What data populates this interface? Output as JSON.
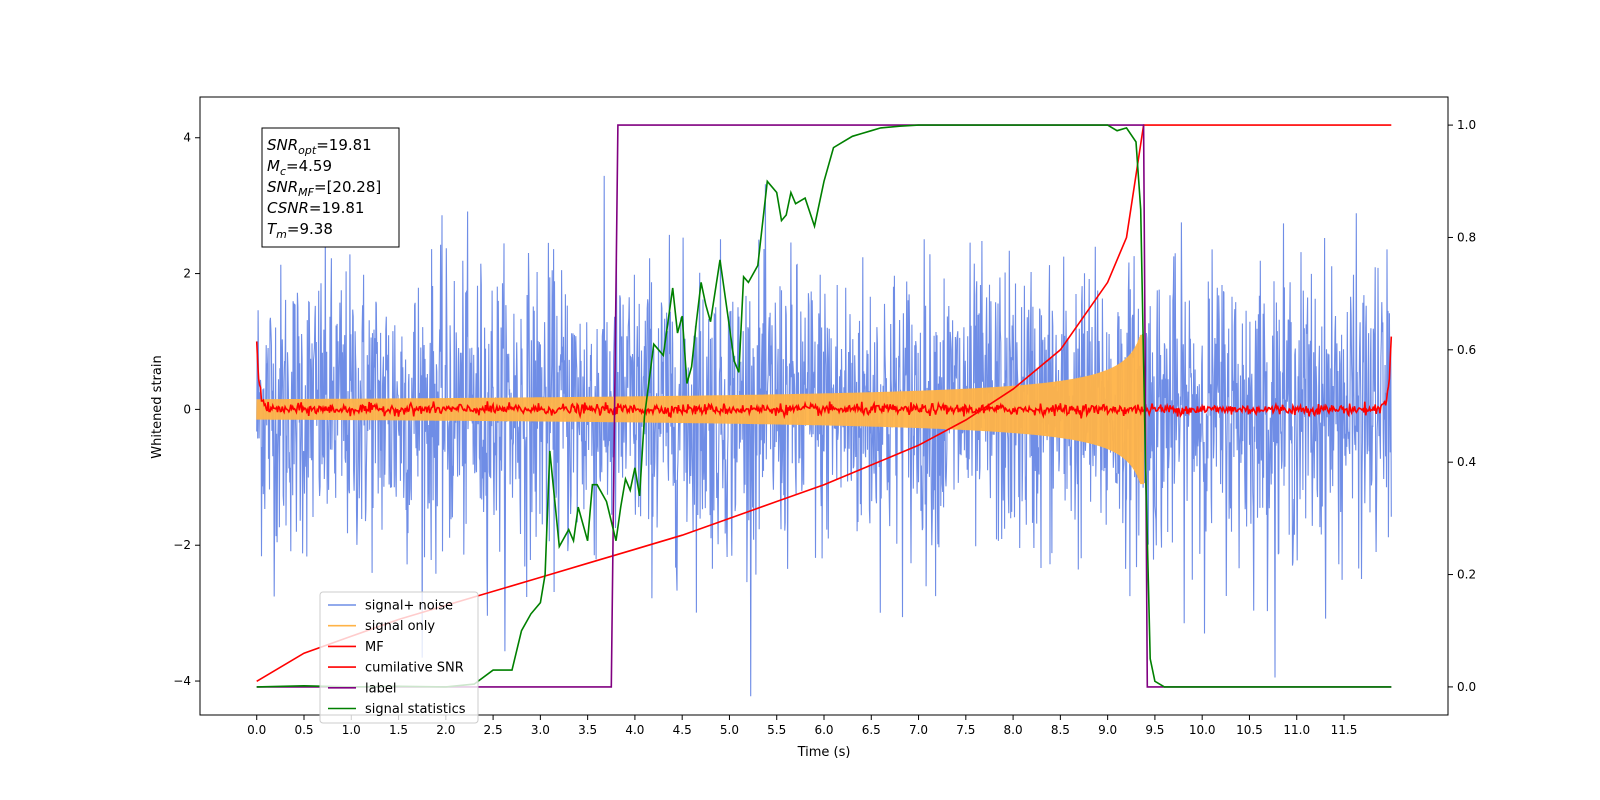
{
  "chart_data": {
    "type": "line",
    "title": "",
    "xlabel": "Time (s)",
    "ylabel": "Whitened strain",
    "y2label": "",
    "xlim": [
      -0.6,
      12.6
    ],
    "ylim": [
      -4.5,
      4.6
    ],
    "y2lim": [
      -0.05,
      1.05
    ],
    "x_ticks": [
      "0.0",
      "0.5",
      "1.0",
      "1.5",
      "2.0",
      "2.5",
      "3.0",
      "3.5",
      "4.0",
      "4.5",
      "5.0",
      "5.5",
      "6.0",
      "6.5",
      "7.0",
      "7.5",
      "8.0",
      "8.5",
      "9.0",
      "9.5",
      "10.0",
      "10.5",
      "11.0",
      "11.5"
    ],
    "y_ticks": [
      "−4",
      "−2",
      "0",
      "2",
      "4"
    ],
    "y2_ticks": [
      "0.0",
      "0.2",
      "0.4",
      "0.6",
      "0.8",
      "1.0"
    ],
    "grid": false,
    "legend_position": "lower-left",
    "annotation": {
      "lines": [
        {
          "base": "SNR",
          "sub": "opt",
          "value": "=19.81"
        },
        {
          "base": "M",
          "sub": "c",
          "value": "=4.59"
        },
        {
          "base": "SNR",
          "sub": "MF",
          "value": "=[20.28]"
        },
        {
          "base": "CSNR",
          "sub": "",
          "value": "=19.81"
        },
        {
          "base": "T",
          "sub": "m",
          "value": "=9.38"
        }
      ]
    },
    "series": [
      {
        "name": "signal+ noise",
        "color": "#6f8de6",
        "axis": "left",
        "noise_sigma": 1.0,
        "x_range": [
          0.0,
          12.0
        ]
      },
      {
        "name": "signal only",
        "color": "#ffb347",
        "axis": "left",
        "merge_time": 9.38,
        "amplitude_start": 0.15,
        "amplitude_peak": 1.1
      },
      {
        "name": "MF",
        "color": "#ff0000",
        "axis": "left",
        "noise_sigma": 0.04,
        "edge_value": 1.0
      },
      {
        "name": "cumilative SNR",
        "color": "#ff0000",
        "axis": "right",
        "x": [
          0.0,
          0.5,
          1.0,
          1.5,
          2.0,
          2.5,
          3.0,
          3.5,
          4.0,
          4.5,
          5.0,
          5.5,
          6.0,
          6.5,
          7.0,
          7.5,
          8.0,
          8.5,
          9.0,
          9.2,
          9.38,
          9.4,
          12.0
        ],
        "values": [
          0.01,
          0.06,
          0.09,
          0.12,
          0.145,
          0.17,
          0.195,
          0.22,
          0.245,
          0.27,
          0.3,
          0.33,
          0.36,
          0.395,
          0.43,
          0.475,
          0.53,
          0.6,
          0.72,
          0.8,
          1.0,
          1.0,
          1.0
        ]
      },
      {
        "name": "label",
        "color": "#800080",
        "axis": "right",
        "x": [
          0.0,
          3.75,
          3.82,
          9.38,
          9.42,
          12.0
        ],
        "values": [
          0.0,
          0.0,
          1.0,
          1.0,
          0.0,
          0.0
        ]
      },
      {
        "name": "signal statistics",
        "color": "#008000",
        "axis": "right",
        "x": [
          0.0,
          0.5,
          1.0,
          1.5,
          2.0,
          2.3,
          2.5,
          2.7,
          2.8,
          2.9,
          3.0,
          3.05,
          3.1,
          3.2,
          3.3,
          3.35,
          3.4,
          3.5,
          3.55,
          3.6,
          3.7,
          3.8,
          3.85,
          3.9,
          3.95,
          4.0,
          4.05,
          4.1,
          4.2,
          4.3,
          4.4,
          4.45,
          4.5,
          4.55,
          4.6,
          4.65,
          4.7,
          4.75,
          4.8,
          4.9,
          5.0,
          5.05,
          5.1,
          5.15,
          5.2,
          5.3,
          5.4,
          5.5,
          5.55,
          5.6,
          5.65,
          5.7,
          5.8,
          5.9,
          6.0,
          6.1,
          6.2,
          6.3,
          6.4,
          6.5,
          6.6,
          6.8,
          7.0,
          7.5,
          8.0,
          8.5,
          9.0,
          9.1,
          9.2,
          9.3,
          9.35,
          9.4,
          9.45,
          9.5,
          9.6,
          12.0
        ],
        "values": [
          0.0,
          0.002,
          0.0,
          0.001,
          0.0,
          0.005,
          0.03,
          0.03,
          0.1,
          0.13,
          0.15,
          0.2,
          0.42,
          0.25,
          0.28,
          0.26,
          0.32,
          0.26,
          0.36,
          0.36,
          0.33,
          0.26,
          0.32,
          0.37,
          0.35,
          0.39,
          0.34,
          0.48,
          0.61,
          0.59,
          0.71,
          0.63,
          0.66,
          0.54,
          0.57,
          0.65,
          0.72,
          0.68,
          0.65,
          0.76,
          0.64,
          0.58,
          0.56,
          0.73,
          0.72,
          0.75,
          0.9,
          0.88,
          0.83,
          0.84,
          0.88,
          0.86,
          0.87,
          0.82,
          0.9,
          0.96,
          0.97,
          0.98,
          0.985,
          0.99,
          0.995,
          0.998,
          1.0,
          1.0,
          1.0,
          1.0,
          1.0,
          0.99,
          0.995,
          0.97,
          0.85,
          0.4,
          0.05,
          0.01,
          0.0,
          0.0
        ]
      }
    ]
  }
}
